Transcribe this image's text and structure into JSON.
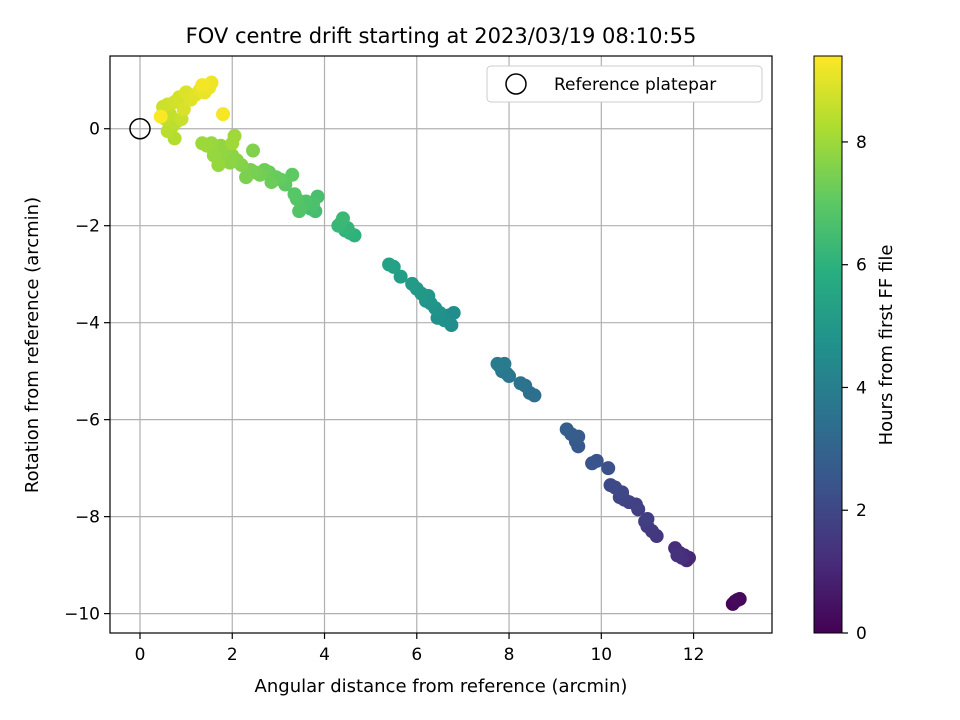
{
  "chart_data": {
    "type": "scatter",
    "title": "FOV centre drift starting at 2023/03/19 08:10:55",
    "xlabel": "Angular distance from reference (arcmin)",
    "ylabel": "Rotation from reference (arcmin)",
    "xlim": [
      -0.65,
      13.7
    ],
    "ylim": [
      -10.4,
      1.5
    ],
    "xticks": [
      0,
      2,
      4,
      6,
      8,
      10,
      12
    ],
    "yticks": [
      -10,
      -8,
      -6,
      -4,
      -2,
      0
    ],
    "grid": true,
    "legend": {
      "position": "top-right",
      "entries": [
        "Reference platepar"
      ]
    },
    "reference_point": {
      "x": 0,
      "y": 0
    },
    "colorbar": {
      "label": "Hours from first FF file",
      "range": [
        0,
        9.4
      ],
      "ticks": [
        0,
        2,
        4,
        6,
        8
      ],
      "colormap": "viridis"
    },
    "series": [
      {
        "points": [
          {
            "x": 12.85,
            "y": -9.8,
            "c": 0.1
          },
          {
            "x": 12.9,
            "y": -9.75,
            "c": 0.15
          },
          {
            "x": 13.0,
            "y": -9.7,
            "c": 0.2
          },
          {
            "x": 12.95,
            "y": -9.72,
            "c": 0.25
          },
          {
            "x": 11.9,
            "y": -8.85,
            "c": 1.0
          },
          {
            "x": 11.85,
            "y": -8.9,
            "c": 1.05
          },
          {
            "x": 11.8,
            "y": -8.8,
            "c": 1.1
          },
          {
            "x": 11.7,
            "y": -8.75,
            "c": 1.15
          },
          {
            "x": 11.6,
            "y": -8.65,
            "c": 1.2
          },
          {
            "x": 11.75,
            "y": -8.85,
            "c": 1.25
          },
          {
            "x": 11.65,
            "y": -8.8,
            "c": 1.3
          },
          {
            "x": 11.2,
            "y": -8.4,
            "c": 1.5
          },
          {
            "x": 11.1,
            "y": -8.3,
            "c": 1.55
          },
          {
            "x": 11.0,
            "y": -8.2,
            "c": 1.6
          },
          {
            "x": 10.95,
            "y": -8.1,
            "c": 1.65
          },
          {
            "x": 11.0,
            "y": -8.05,
            "c": 1.7
          },
          {
            "x": 10.8,
            "y": -7.85,
            "c": 1.75
          },
          {
            "x": 10.75,
            "y": -7.75,
            "c": 1.8
          },
          {
            "x": 10.6,
            "y": -7.7,
            "c": 1.85
          },
          {
            "x": 10.5,
            "y": -7.65,
            "c": 1.9
          },
          {
            "x": 10.4,
            "y": -7.6,
            "c": 1.95
          },
          {
            "x": 10.45,
            "y": -7.5,
            "c": 2.0
          },
          {
            "x": 10.3,
            "y": -7.4,
            "c": 2.05
          },
          {
            "x": 10.2,
            "y": -7.35,
            "c": 2.1
          },
          {
            "x": 10.15,
            "y": -7.0,
            "c": 2.3
          },
          {
            "x": 9.9,
            "y": -6.85,
            "c": 2.4
          },
          {
            "x": 9.8,
            "y": -6.9,
            "c": 2.45
          },
          {
            "x": 9.5,
            "y": -6.55,
            "c": 2.6
          },
          {
            "x": 9.45,
            "y": -6.45,
            "c": 2.65
          },
          {
            "x": 9.5,
            "y": -6.35,
            "c": 2.7
          },
          {
            "x": 9.35,
            "y": -6.3,
            "c": 2.75
          },
          {
            "x": 9.25,
            "y": -6.2,
            "c": 2.8
          },
          {
            "x": 8.55,
            "y": -5.5,
            "c": 3.4
          },
          {
            "x": 8.45,
            "y": -5.45,
            "c": 3.45
          },
          {
            "x": 8.35,
            "y": -5.3,
            "c": 3.5
          },
          {
            "x": 8.25,
            "y": -5.25,
            "c": 3.55
          },
          {
            "x": 8.0,
            "y": -5.1,
            "c": 3.65
          },
          {
            "x": 7.95,
            "y": -5.05,
            "c": 3.7
          },
          {
            "x": 7.85,
            "y": -5.0,
            "c": 3.75
          },
          {
            "x": 7.8,
            "y": -4.9,
            "c": 3.8
          },
          {
            "x": 7.9,
            "y": -4.85,
            "c": 3.85
          },
          {
            "x": 7.75,
            "y": -4.85,
            "c": 3.9
          },
          {
            "x": 6.8,
            "y": -3.8,
            "c": 4.5
          },
          {
            "x": 6.7,
            "y": -3.85,
            "c": 4.55
          },
          {
            "x": 6.75,
            "y": -4.05,
            "c": 4.6
          },
          {
            "x": 6.6,
            "y": -3.95,
            "c": 4.65
          },
          {
            "x": 6.5,
            "y": -3.8,
            "c": 4.7
          },
          {
            "x": 6.45,
            "y": -3.9,
            "c": 4.75
          },
          {
            "x": 6.4,
            "y": -3.7,
            "c": 4.8
          },
          {
            "x": 6.3,
            "y": -3.6,
            "c": 4.85
          },
          {
            "x": 6.2,
            "y": -3.55,
            "c": 4.9
          },
          {
            "x": 6.25,
            "y": -3.45,
            "c": 4.95
          },
          {
            "x": 6.1,
            "y": -3.4,
            "c": 5.0
          },
          {
            "x": 6.0,
            "y": -3.3,
            "c": 5.05
          },
          {
            "x": 5.9,
            "y": -3.2,
            "c": 5.1
          },
          {
            "x": 5.65,
            "y": -3.05,
            "c": 5.2
          },
          {
            "x": 5.5,
            "y": -2.85,
            "c": 5.3
          },
          {
            "x": 5.4,
            "y": -2.8,
            "c": 5.35
          },
          {
            "x": 4.65,
            "y": -2.2,
            "c": 6.0
          },
          {
            "x": 4.55,
            "y": -2.15,
            "c": 6.05
          },
          {
            "x": 4.45,
            "y": -2.1,
            "c": 6.1
          },
          {
            "x": 4.5,
            "y": -2.05,
            "c": 6.15
          },
          {
            "x": 4.35,
            "y": -1.95,
            "c": 6.2
          },
          {
            "x": 4.3,
            "y": -2.0,
            "c": 6.25
          },
          {
            "x": 4.4,
            "y": -1.85,
            "c": 6.3
          },
          {
            "x": 3.8,
            "y": -1.7,
            "c": 6.5
          },
          {
            "x": 3.7,
            "y": -1.65,
            "c": 6.55
          },
          {
            "x": 3.85,
            "y": -1.4,
            "c": 6.6
          },
          {
            "x": 3.75,
            "y": -1.55,
            "c": 6.65
          },
          {
            "x": 3.6,
            "y": -1.5,
            "c": 6.7
          },
          {
            "x": 3.5,
            "y": -1.6,
            "c": 6.75
          },
          {
            "x": 3.45,
            "y": -1.7,
            "c": 6.8
          },
          {
            "x": 3.4,
            "y": -1.45,
            "c": 6.85
          },
          {
            "x": 3.35,
            "y": -1.35,
            "c": 6.9
          },
          {
            "x": 3.15,
            "y": -1.15,
            "c": 7.0
          },
          {
            "x": 3.3,
            "y": -0.95,
            "c": 7.05
          },
          {
            "x": 3.05,
            "y": -1.05,
            "c": 7.1
          },
          {
            "x": 2.95,
            "y": -1.0,
            "c": 7.15
          },
          {
            "x": 2.8,
            "y": -0.9,
            "c": 7.2
          },
          {
            "x": 2.85,
            "y": -1.1,
            "c": 7.25
          },
          {
            "x": 2.7,
            "y": -0.85,
            "c": 7.3
          },
          {
            "x": 2.6,
            "y": -0.95,
            "c": 7.35
          },
          {
            "x": 2.5,
            "y": -0.9,
            "c": 7.4
          },
          {
            "x": 2.4,
            "y": -0.85,
            "c": 7.45
          },
          {
            "x": 2.3,
            "y": -1.0,
            "c": 7.5
          },
          {
            "x": 2.45,
            "y": -0.45,
            "c": 7.55
          },
          {
            "x": 2.2,
            "y": -0.75,
            "c": 7.6
          },
          {
            "x": 2.1,
            "y": -0.65,
            "c": 7.65
          },
          {
            "x": 2.0,
            "y": -0.55,
            "c": 7.7
          },
          {
            "x": 1.95,
            "y": -0.7,
            "c": 7.72
          },
          {
            "x": 1.85,
            "y": -0.6,
            "c": 7.75
          },
          {
            "x": 1.9,
            "y": -0.4,
            "c": 7.78
          },
          {
            "x": 1.8,
            "y": -0.5,
            "c": 7.8
          },
          {
            "x": 1.75,
            "y": -0.35,
            "c": 7.82
          },
          {
            "x": 1.7,
            "y": -0.65,
            "c": 7.85
          },
          {
            "x": 1.6,
            "y": -0.55,
            "c": 7.88
          },
          {
            "x": 1.7,
            "y": -0.75,
            "c": 7.9
          },
          {
            "x": 1.55,
            "y": -0.3,
            "c": 7.92
          },
          {
            "x": 1.45,
            "y": -0.35,
            "c": 7.95
          },
          {
            "x": 1.35,
            "y": -0.3,
            "c": 7.98
          },
          {
            "x": 2.05,
            "y": -0.15,
            "c": 8.0
          },
          {
            "x": 2.0,
            "y": -0.3,
            "c": 8.02
          },
          {
            "x": 0.75,
            "y": -0.2,
            "c": 8.3
          },
          {
            "x": 0.7,
            "y": 0.05,
            "c": 8.35
          },
          {
            "x": 0.6,
            "y": -0.05,
            "c": 8.4
          },
          {
            "x": 0.8,
            "y": 0.15,
            "c": 8.45
          },
          {
            "x": 0.55,
            "y": 0.2,
            "c": 8.5
          },
          {
            "x": 0.65,
            "y": 0.3,
            "c": 8.55
          },
          {
            "x": 0.9,
            "y": 0.2,
            "c": 8.6
          },
          {
            "x": 0.5,
            "y": 0.45,
            "c": 8.65
          },
          {
            "x": 0.6,
            "y": 0.5,
            "c": 8.7
          },
          {
            "x": 0.75,
            "y": 0.55,
            "c": 8.75
          },
          {
            "x": 0.85,
            "y": 0.65,
            "c": 8.8
          },
          {
            "x": 0.95,
            "y": 0.4,
            "c": 8.85
          },
          {
            "x": 1.0,
            "y": 0.75,
            "c": 8.9
          },
          {
            "x": 1.1,
            "y": 0.6,
            "c": 8.95
          },
          {
            "x": 1.2,
            "y": 0.7,
            "c": 9.0
          },
          {
            "x": 1.3,
            "y": 0.8,
            "c": 9.05
          },
          {
            "x": 1.4,
            "y": 0.75,
            "c": 9.1
          },
          {
            "x": 1.5,
            "y": 0.85,
            "c": 9.15
          },
          {
            "x": 1.55,
            "y": 0.95,
            "c": 9.2
          },
          {
            "x": 1.35,
            "y": 0.9,
            "c": 9.25
          },
          {
            "x": 1.8,
            "y": 0.3,
            "c": 9.3
          },
          {
            "x": 0.45,
            "y": 0.25,
            "c": 9.35
          }
        ]
      }
    ]
  }
}
